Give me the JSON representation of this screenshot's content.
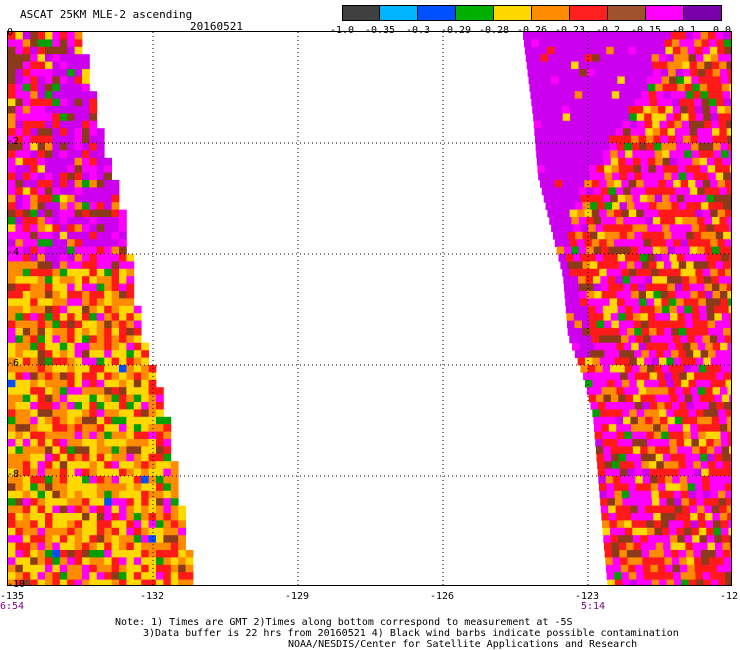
{
  "header": {
    "title": "ASCAT 25KM MLE-2 ascending",
    "date": "20160521"
  },
  "colorbar": {
    "colors": [
      "#404040",
      "#00b4ff",
      "#0050ff",
      "#00b000",
      "#ffd800",
      "#ff8c00",
      "#ff2020",
      "#a0522d",
      "#ff00ff",
      "#7800a8"
    ],
    "labels": [
      "-1.0",
      "-0.35",
      "-0.3",
      "-0.29",
      "-0.28",
      "-0.26",
      "-0.23",
      "-0.2",
      "-0.15",
      "-0.1",
      "0.0"
    ]
  },
  "map": {
    "lon_range": [
      -135,
      -124
    ],
    "lat_range": [
      -10,
      0
    ],
    "lon_ticks": [
      "-135",
      "-132",
      "-129",
      "-126",
      "-123",
      "-12"
    ],
    "lat_ticks": [
      "0",
      "-2",
      "-4",
      "-6",
      "-8",
      "-10"
    ],
    "grid": "dotted",
    "swath_times": {
      "left": "6:54",
      "right": "5:14"
    },
    "palette": {
      "magenta": "#ff00ff",
      "purple": "#cc00ee",
      "red": "#ff1a1a",
      "orange": "#ff8c00",
      "yellow": "#ffd800",
      "brown": "#8b3a1a",
      "green": "#00a000",
      "blue": "#0050ff"
    }
  },
  "notes": {
    "line1": "Note: 1) Times are GMT 2)Times along bottom correspond to measurement at -5S",
    "line2": "3)Data buffer is 22 hrs from 20160521 4) Black wind barbs indicate possible contamination",
    "line3": "NOAA/NESDIS/Center for Satellite Applications and Research"
  }
}
